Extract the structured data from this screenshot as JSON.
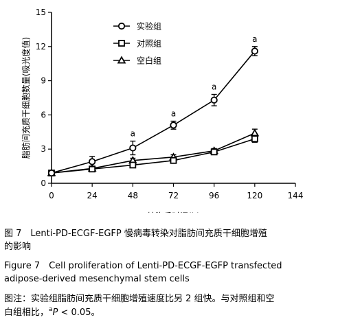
{
  "chart_data": {
    "type": "line",
    "ylabel": "脂肪间充质干细胞数量(吸光度值)",
    "xlabel": "转染后时间(h)",
    "x": [
      0,
      24,
      48,
      72,
      96,
      120
    ],
    "xticks": [
      0,
      24,
      48,
      72,
      96,
      120,
      144
    ],
    "xlim": [
      0,
      144
    ],
    "yticks": [
      0,
      3,
      6,
      9,
      12,
      15
    ],
    "ylim": [
      0,
      15
    ],
    "legend_position": "top-left",
    "series": [
      {
        "name": "实验组",
        "marker": "circle",
        "values": [
          0.9,
          1.9,
          3.1,
          5.1,
          7.3,
          11.6
        ],
        "errors": [
          0.1,
          0.45,
          0.6,
          0.35,
          0.5,
          0.4
        ]
      },
      {
        "name": "对照组",
        "marker": "square",
        "values": [
          0.9,
          1.25,
          1.6,
          2.0,
          2.75,
          3.9
        ],
        "errors": [
          0.1,
          0.2,
          0.2,
          0.2,
          0.2,
          0.3
        ]
      },
      {
        "name": "空白组",
        "marker": "triangle",
        "values": [
          0.9,
          1.3,
          2.0,
          2.3,
          2.85,
          4.4
        ],
        "errors": [
          0.1,
          0.2,
          0.2,
          0.2,
          0.2,
          0.35
        ]
      }
    ],
    "annotations": [
      {
        "x": 48,
        "y": 3.1,
        "text": "a"
      },
      {
        "x": 72,
        "y": 5.1,
        "text": "a"
      },
      {
        "x": 96,
        "y": 7.3,
        "text": "a"
      },
      {
        "x": 120,
        "y": 11.6,
        "text": "a"
      }
    ]
  },
  "caption": {
    "cn_title_line1": "图 7　Lenti-PD-ECGF-EGFP 慢病毒转染对脂肪间充质干细胞增殖",
    "cn_title_line2": "的影响",
    "en_title_line1": "Figure 7　Cell proliferation of Lenti-PD-ECGF-EGFP transfected",
    "en_title_line2": "adipose-derived mesenchymal stem cells",
    "note_line1": "图注：实验组脂肪间充质干细胞增殖速度比另 2 组快。与对照组和空",
    "note_line2_pre": "白组相比，",
    "note_sup": "a",
    "note_p": "P",
    "note_tail": " < 0.05。"
  }
}
